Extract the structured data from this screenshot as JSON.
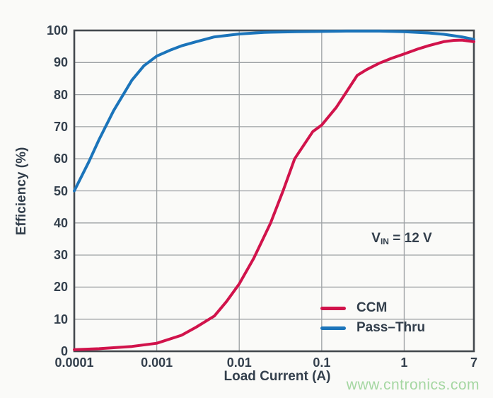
{
  "watermark": {
    "text": "www.cntronics.com",
    "color": "#a5d7a2"
  },
  "annotation": {
    "prefix": "V",
    "subscript": "IN",
    "suffix": " = 12 V"
  },
  "chart_data": {
    "type": "line",
    "title": "",
    "xlabel": "Load Current (A)",
    "ylabel": "Efficiency (%)",
    "x_scale": "log",
    "x_range": [
      0.0001,
      7
    ],
    "y_range": [
      0,
      100
    ],
    "grid": true,
    "legend_position": "inside lower right",
    "text_color": "#333f4c",
    "grid_color": "#9da1a4",
    "frame_color": "#44494e",
    "x_ticks": [
      {
        "value": 0.0001,
        "label": "0.0001",
        "gridline": false
      },
      {
        "value": 0.001,
        "label": "0.001",
        "gridline": true
      },
      {
        "value": 0.01,
        "label": "0.01",
        "gridline": true
      },
      {
        "value": 0.1,
        "label": "0.1",
        "gridline": true
      },
      {
        "value": 1,
        "label": "1",
        "gridline": true
      },
      {
        "value": 7,
        "label": "7",
        "gridline": false
      }
    ],
    "y_ticks": [
      0,
      10,
      20,
      30,
      40,
      50,
      60,
      70,
      80,
      90,
      100
    ],
    "series": [
      {
        "name": "CCM",
        "color": "#d1134b",
        "x": [
          0.0001,
          0.0002,
          0.0005,
          0.001,
          0.002,
          0.003,
          0.005,
          0.007,
          0.01,
          0.015,
          0.024,
          0.034,
          0.047,
          0.078,
          0.1,
          0.15,
          0.19,
          0.27,
          0.35,
          0.5,
          0.7,
          1,
          1.5,
          2,
          3,
          4,
          5,
          7
        ],
        "y": [
          0.5,
          0.8,
          1.5,
          2.5,
          5,
          7.5,
          11,
          15.5,
          21,
          29,
          40,
          50,
          60,
          68.5,
          70.5,
          76,
          80,
          86,
          87.8,
          89.8,
          91.3,
          92.7,
          94.3,
          95.3,
          96.5,
          96.9,
          97,
          96.5
        ]
      },
      {
        "name": "Pass–Thru",
        "color": "#1b74ba",
        "x": [
          0.0001,
          0.00015,
          0.0002,
          0.0003,
          0.0005,
          0.0007,
          0.001,
          0.0015,
          0.002,
          0.003,
          0.005,
          0.01,
          0.02,
          0.05,
          0.1,
          0.2,
          0.5,
          1,
          2,
          3,
          5,
          7
        ],
        "y": [
          50,
          59,
          66,
          75,
          84.5,
          89,
          92,
          94,
          95.2,
          96.5,
          98,
          98.9,
          99.4,
          99.6,
          99.7,
          99.8,
          99.8,
          99.6,
          99.2,
          98.8,
          98,
          97.2
        ]
      }
    ]
  }
}
